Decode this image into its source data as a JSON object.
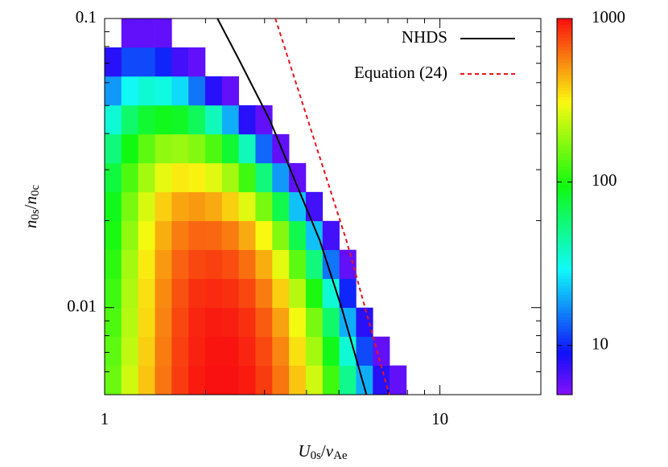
{
  "chart_data": {
    "type": "heatmap",
    "xlabel": [
      "U",
      "0s",
      "/",
      "v",
      "Ae"
    ],
    "ylabel": [
      "n",
      "0s",
      "/",
      "n",
      "0c"
    ],
    "xscale": "log",
    "yscale": "log",
    "cscale": "log",
    "xlim": [
      1,
      20
    ],
    "ylim": [
      0.005,
      0.1
    ],
    "clim": [
      5,
      1000
    ],
    "xticks": [
      1,
      10
    ],
    "yticks": [
      0.01,
      0.1
    ],
    "cticks": [
      10,
      100,
      1000
    ],
    "xminorticks": [
      2,
      3,
      4,
      5,
      6,
      7,
      8,
      9
    ],
    "yminorticks": [
      0.006,
      0.007,
      0.008,
      0.009,
      0.02,
      0.03,
      0.04,
      0.05,
      0.06,
      0.07,
      0.08,
      0.09
    ],
    "xbins": [
      1,
      1.122,
      1.259,
      1.413,
      1.585,
      1.778,
      1.995,
      2.239,
      2.512,
      2.818,
      3.162,
      3.548,
      3.981,
      4.467,
      5.012,
      5.623,
      6.31,
      7.079,
      7.943
    ],
    "ybins": [
      0.005,
      0.00631,
      0.00794,
      0.01,
      0.01259,
      0.01585,
      0.01995,
      0.02512,
      0.03162,
      0.03981,
      0.05012,
      0.0631,
      0.07943,
      0.1
    ],
    "values": [
      [
        150,
        250,
        400,
        600,
        800,
        950,
        1000,
        1000,
        950,
        800,
        600,
        400,
        250,
        120,
        50,
        20,
        8,
        6
      ],
      [
        140,
        230,
        380,
        580,
        780,
        920,
        980,
        980,
        900,
        750,
        550,
        350,
        200,
        90,
        35,
        12,
        6,
        null
      ],
      [
        130,
        220,
        360,
        560,
        760,
        900,
        950,
        930,
        850,
        680,
        480,
        300,
        160,
        60,
        20,
        8,
        null,
        null
      ],
      [
        120,
        210,
        350,
        540,
        720,
        850,
        880,
        850,
        760,
        580,
        380,
        220,
        100,
        35,
        10,
        null,
        null,
        null
      ],
      [
        110,
        200,
        330,
        500,
        660,
        760,
        780,
        730,
        620,
        450,
        280,
        140,
        55,
        15,
        6,
        null,
        null,
        null
      ],
      [
        100,
        180,
        300,
        450,
        580,
        650,
        640,
        580,
        460,
        310,
        170,
        70,
        22,
        7,
        null,
        null,
        null,
        null
      ],
      [
        90,
        160,
        260,
        380,
        470,
        500,
        460,
        380,
        270,
        160,
        70,
        22,
        7,
        null,
        null,
        null,
        null,
        null
      ],
      [
        75,
        130,
        200,
        280,
        330,
        320,
        270,
        200,
        120,
        55,
        18,
        6,
        null,
        null,
        null,
        null,
        null,
        null
      ],
      [
        55,
        95,
        140,
        180,
        190,
        170,
        130,
        80,
        40,
        14,
        6,
        null,
        null,
        null,
        null,
        null,
        null,
        null
      ],
      [
        35,
        60,
        80,
        90,
        85,
        65,
        40,
        20,
        8,
        6,
        null,
        null,
        null,
        null,
        null,
        null,
        null,
        null
      ],
      [
        18,
        30,
        35,
        33,
        25,
        15,
        8,
        6,
        null,
        null,
        null,
        null,
        null,
        null,
        null,
        null,
        null,
        null
      ],
      [
        8,
        12,
        12,
        10,
        7,
        6,
        null,
        null,
        null,
        null,
        null,
        null,
        null,
        null,
        null,
        null,
        null,
        null
      ],
      [
        null,
        6,
        6,
        6,
        null,
        null,
        null,
        null,
        null,
        null,
        null,
        null,
        null,
        null,
        null,
        null,
        null,
        null
      ]
    ],
    "lines": [
      {
        "name": "NHDS",
        "color": "#000000",
        "dash": false,
        "x": [
          2.17,
          2.52,
          3.11,
          4.38,
          5.09,
          6.04
        ],
        "y": [
          0.1,
          0.0718,
          0.0445,
          0.0171,
          0.01,
          0.005
        ]
      },
      {
        "name": "Equation (24)",
        "color": "#e8141e",
        "dash": true,
        "x": [
          3.23,
          5.26,
          7.06
        ],
        "y": [
          0.1,
          0.0171,
          0.005
        ]
      }
    ],
    "legend": "top-right"
  }
}
